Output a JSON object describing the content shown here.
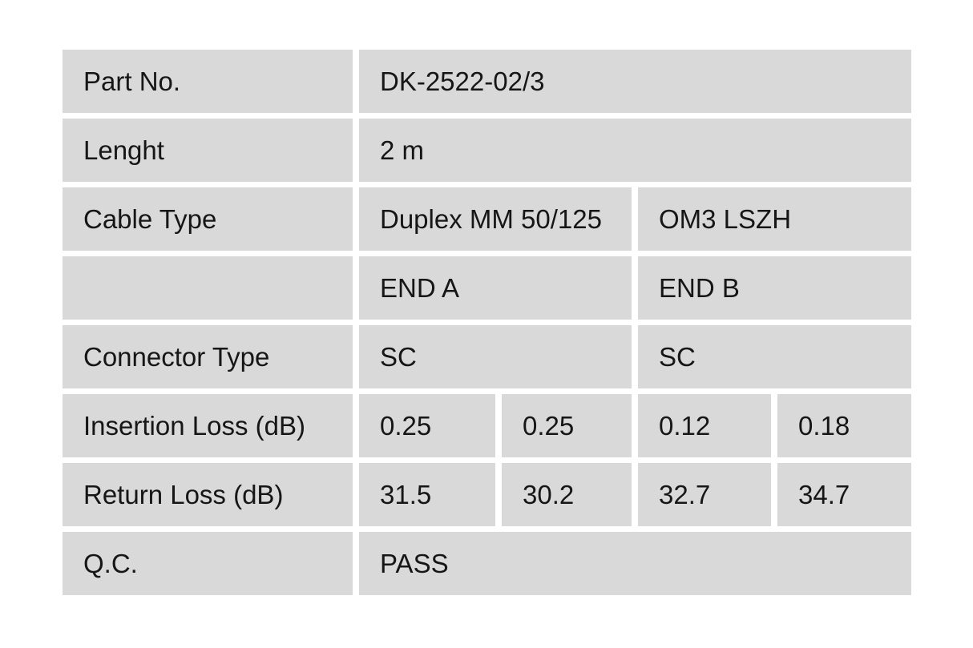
{
  "table": {
    "cell_background": "#d9d9d9",
    "gap_color": "#ffffff",
    "text_color": "#161616",
    "rows": [
      {
        "label": "Part No.",
        "cells": [
          "DK-2522-02/3"
        ]
      },
      {
        "label": "Lenght",
        "cells": [
          "2 m"
        ]
      },
      {
        "label": "Cable Type",
        "cells": [
          "Duplex MM 50/125",
          "OM3 LSZH"
        ]
      },
      {
        "label": "",
        "cells": [
          "END A",
          "END B"
        ]
      },
      {
        "label": "Connector Type",
        "cells": [
          "SC",
          "SC"
        ]
      },
      {
        "label": "Insertion Loss (dB)",
        "cells": [
          "0.25",
          "0.25",
          "0.12",
          "0.18"
        ]
      },
      {
        "label": "Return Loss (dB)",
        "cells": [
          "31.5",
          "30.2",
          "32.7",
          "34.7"
        ]
      },
      {
        "label": "Q.C.",
        "cells": [
          "PASS"
        ]
      }
    ]
  }
}
